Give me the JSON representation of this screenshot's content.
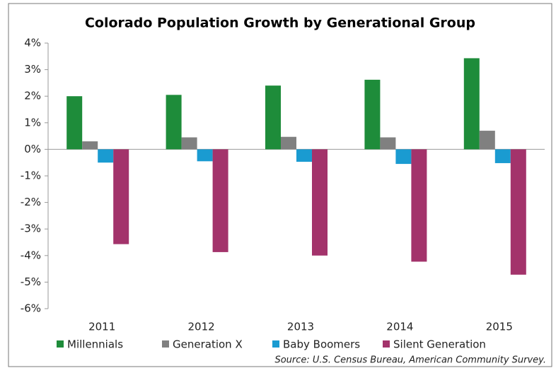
{
  "chart_data": {
    "type": "bar",
    "title": "Colorado Population Growth by Generational Group",
    "source": "Source: U.S. Census Bureau, American Community Survey.",
    "categories": [
      "2011",
      "2012",
      "2013",
      "2014",
      "2015"
    ],
    "series": [
      {
        "name": "Millennials",
        "color": "#1e8c3a",
        "values": [
          2.0,
          2.05,
          2.4,
          2.62,
          3.43
        ]
      },
      {
        "name": "Generation X",
        "color": "#808080",
        "values": [
          0.3,
          0.45,
          0.47,
          0.45,
          0.7
        ]
      },
      {
        "name": "Baby Boomers",
        "color": "#1a9bd1",
        "values": [
          -0.5,
          -0.45,
          -0.47,
          -0.55,
          -0.52
        ]
      },
      {
        "name": "Silent Generation",
        "color": "#a3336b",
        "values": [
          -3.57,
          -3.87,
          -4.0,
          -4.23,
          -4.72
        ]
      }
    ],
    "ylim": [
      -6,
      4
    ],
    "yticks": [
      {
        "value": 4,
        "label": "4%"
      },
      {
        "value": 3,
        "label": "3%"
      },
      {
        "value": 2,
        "label": "2%"
      },
      {
        "value": 1,
        "label": "1%"
      },
      {
        "value": 0,
        "label": "0%"
      },
      {
        "value": -1,
        "label": "-1%"
      },
      {
        "value": -2,
        "label": "-2%"
      },
      {
        "value": -3,
        "label": "-3%"
      },
      {
        "value": -4,
        "label": "-4%"
      },
      {
        "value": -5,
        "label": "-5%"
      },
      {
        "value": -6,
        "label": "-6%"
      }
    ],
    "grid": false,
    "legend": "bottom"
  }
}
